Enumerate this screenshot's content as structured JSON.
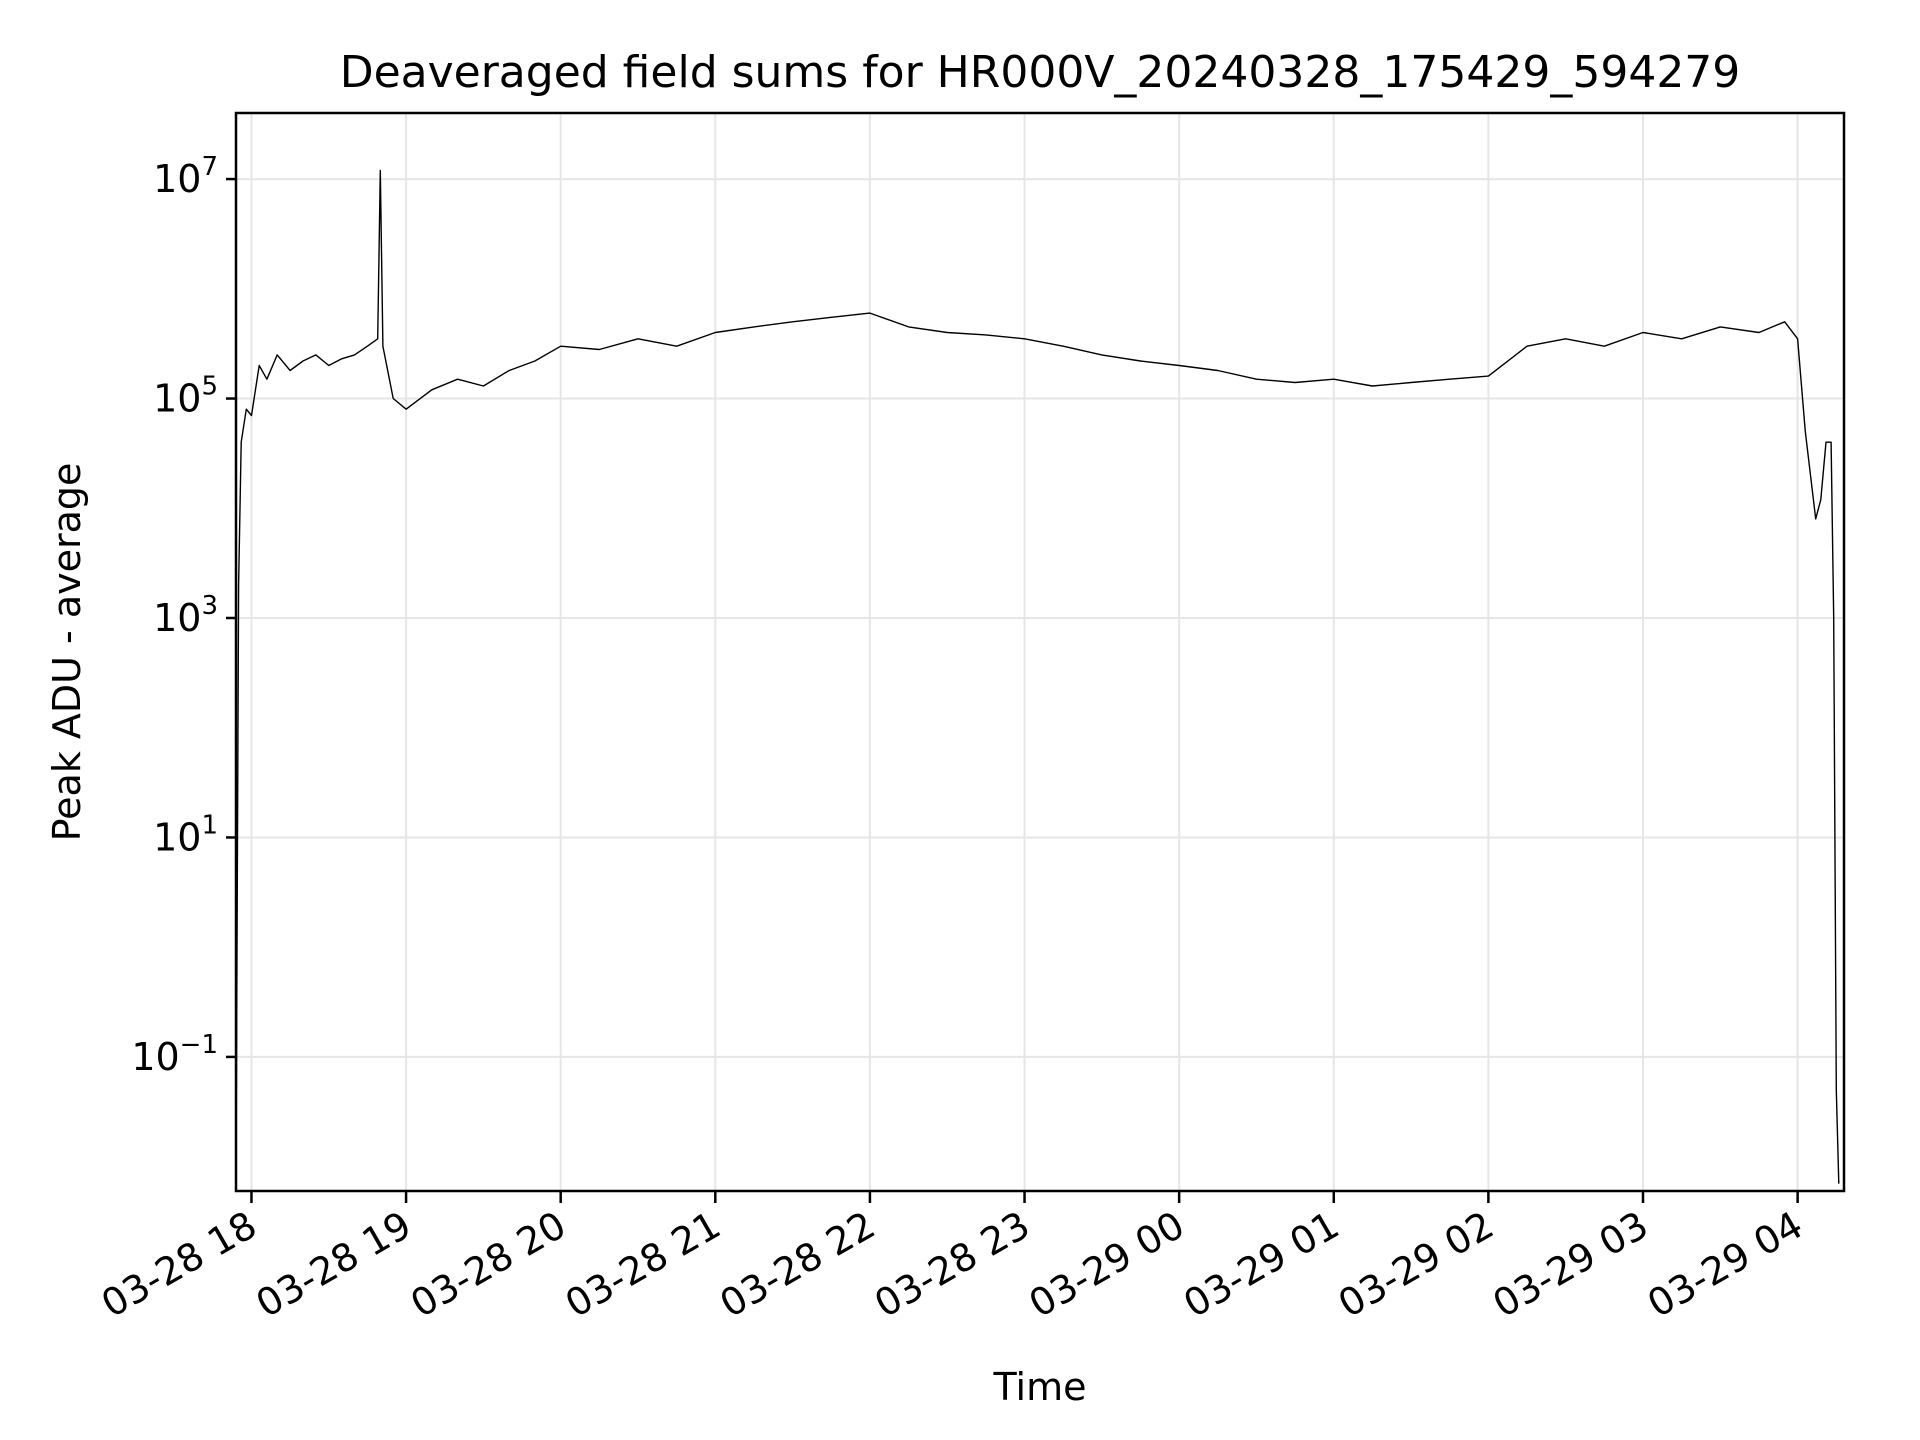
{
  "chart_data": {
    "type": "line",
    "title": "Deaveraged field sums for HR000V_20240328_175429_594279",
    "xlabel": "Time",
    "ylabel": "Peak ADU - average",
    "yscale": "log",
    "grid": true,
    "x_tick_labels": [
      "03-28 18",
      "03-28 19",
      "03-28 20",
      "03-28 21",
      "03-28 22",
      "03-28 23",
      "03-29 00",
      "03-29 01",
      "03-29 02",
      "03-29 03",
      "03-29 04"
    ],
    "x_ticks": [
      "2024-03-28 18:00",
      "2024-03-28 19:00",
      "2024-03-28 20:00",
      "2024-03-28 21:00",
      "2024-03-28 22:00",
      "2024-03-28 23:00",
      "2024-03-29 00:00",
      "2024-03-29 01:00",
      "2024-03-29 02:00",
      "2024-03-29 03:00",
      "2024-03-29 04:00"
    ],
    "xlim": [
      "2024-03-28 17:54",
      "2024-03-29 04:18"
    ],
    "y_ticks": [
      {
        "base": "10",
        "exp": "7",
        "value": 10000000
      },
      {
        "base": "10",
        "exp": "5",
        "value": 100000
      },
      {
        "base": "10",
        "exp": "3",
        "value": 1000
      },
      {
        "base": "10",
        "exp": "1",
        "value": 10
      },
      {
        "base": "10",
        "exp": "−1",
        "value": 0.1
      }
    ],
    "ylim": [
      0.006,
      40000000
    ],
    "line_color": "#000000",
    "series": [
      {
        "x": [
          "2024-03-28 17:54",
          "2024-03-28 17:55",
          "2024-03-28 17:56",
          "2024-03-28 17:58",
          "2024-03-28 18:00",
          "2024-03-28 18:03",
          "2024-03-28 18:06",
          "2024-03-28 18:10",
          "2024-03-28 18:15",
          "2024-03-28 18:20",
          "2024-03-28 18:25",
          "2024-03-28 18:30",
          "2024-03-28 18:35",
          "2024-03-28 18:40",
          "2024-03-28 18:45",
          "2024-03-28 18:49",
          "2024-03-28 18:50",
          "2024-03-28 18:51",
          "2024-03-28 18:55",
          "2024-03-28 19:00",
          "2024-03-28 19:10",
          "2024-03-28 19:20",
          "2024-03-28 19:30",
          "2024-03-28 19:40",
          "2024-03-28 19:50",
          "2024-03-28 20:00",
          "2024-03-28 20:15",
          "2024-03-28 20:30",
          "2024-03-28 20:45",
          "2024-03-28 21:00",
          "2024-03-28 21:15",
          "2024-03-28 21:30",
          "2024-03-28 21:45",
          "2024-03-28 22:00",
          "2024-03-28 22:15",
          "2024-03-28 22:30",
          "2024-03-28 22:45",
          "2024-03-28 23:00",
          "2024-03-28 23:15",
          "2024-03-28 23:30",
          "2024-03-28 23:45",
          "2024-03-29 00:00",
          "2024-03-29 00:15",
          "2024-03-29 00:30",
          "2024-03-29 00:45",
          "2024-03-29 01:00",
          "2024-03-29 01:15",
          "2024-03-29 01:30",
          "2024-03-29 01:45",
          "2024-03-29 02:00",
          "2024-03-29 02:15",
          "2024-03-29 02:30",
          "2024-03-29 02:45",
          "2024-03-29 03:00",
          "2024-03-29 03:15",
          "2024-03-29 03:30",
          "2024-03-29 03:45",
          "2024-03-29 03:55",
          "2024-03-29 04:00",
          "2024-03-29 04:03",
          "2024-03-29 04:05",
          "2024-03-29 04:07",
          "2024-03-29 04:09",
          "2024-03-29 04:11",
          "2024-03-29 04:13",
          "2024-03-29 04:14",
          "2024-03-29 04:15",
          "2024-03-29 04:16"
        ],
        "y": [
          0.007,
          2000,
          40000,
          80000,
          70000,
          200000,
          150000,
          250000,
          180000,
          220000,
          250000,
          200000,
          230000,
          250000,
          300000,
          350000,
          12000000,
          300000,
          100000,
          80000,
          120000,
          150000,
          130000,
          180000,
          220000,
          300000,
          280000,
          350000,
          300000,
          400000,
          450000,
          500000,
          550000,
          600000,
          450000,
          400000,
          380000,
          350000,
          300000,
          250000,
          220000,
          200000,
          180000,
          150000,
          140000,
          150000,
          130000,
          140000,
          150000,
          160000,
          300000,
          350000,
          300000,
          400000,
          350000,
          450000,
          400000,
          500000,
          350000,
          50000,
          20000,
          8000,
          12000,
          40000,
          40000,
          1000,
          0.05,
          0.007
        ]
      }
    ]
  }
}
